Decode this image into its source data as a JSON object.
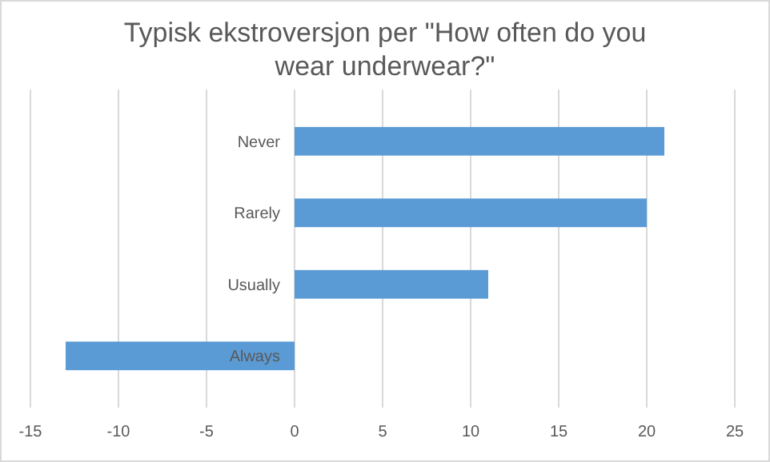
{
  "chart_data": {
    "type": "bar",
    "orientation": "horizontal",
    "title": "Typisk ekstroversjon per \"How often do you wear underwear?\"",
    "categories": [
      "Never",
      "Rarely",
      "Usually",
      "Always"
    ],
    "values": [
      21,
      20,
      11,
      -13
    ],
    "color": "#5b9bd5",
    "xlim": [
      -15,
      25
    ],
    "xticks": [
      -15,
      -10,
      -5,
      0,
      5,
      10,
      15,
      20,
      25
    ],
    "grid": "x"
  }
}
